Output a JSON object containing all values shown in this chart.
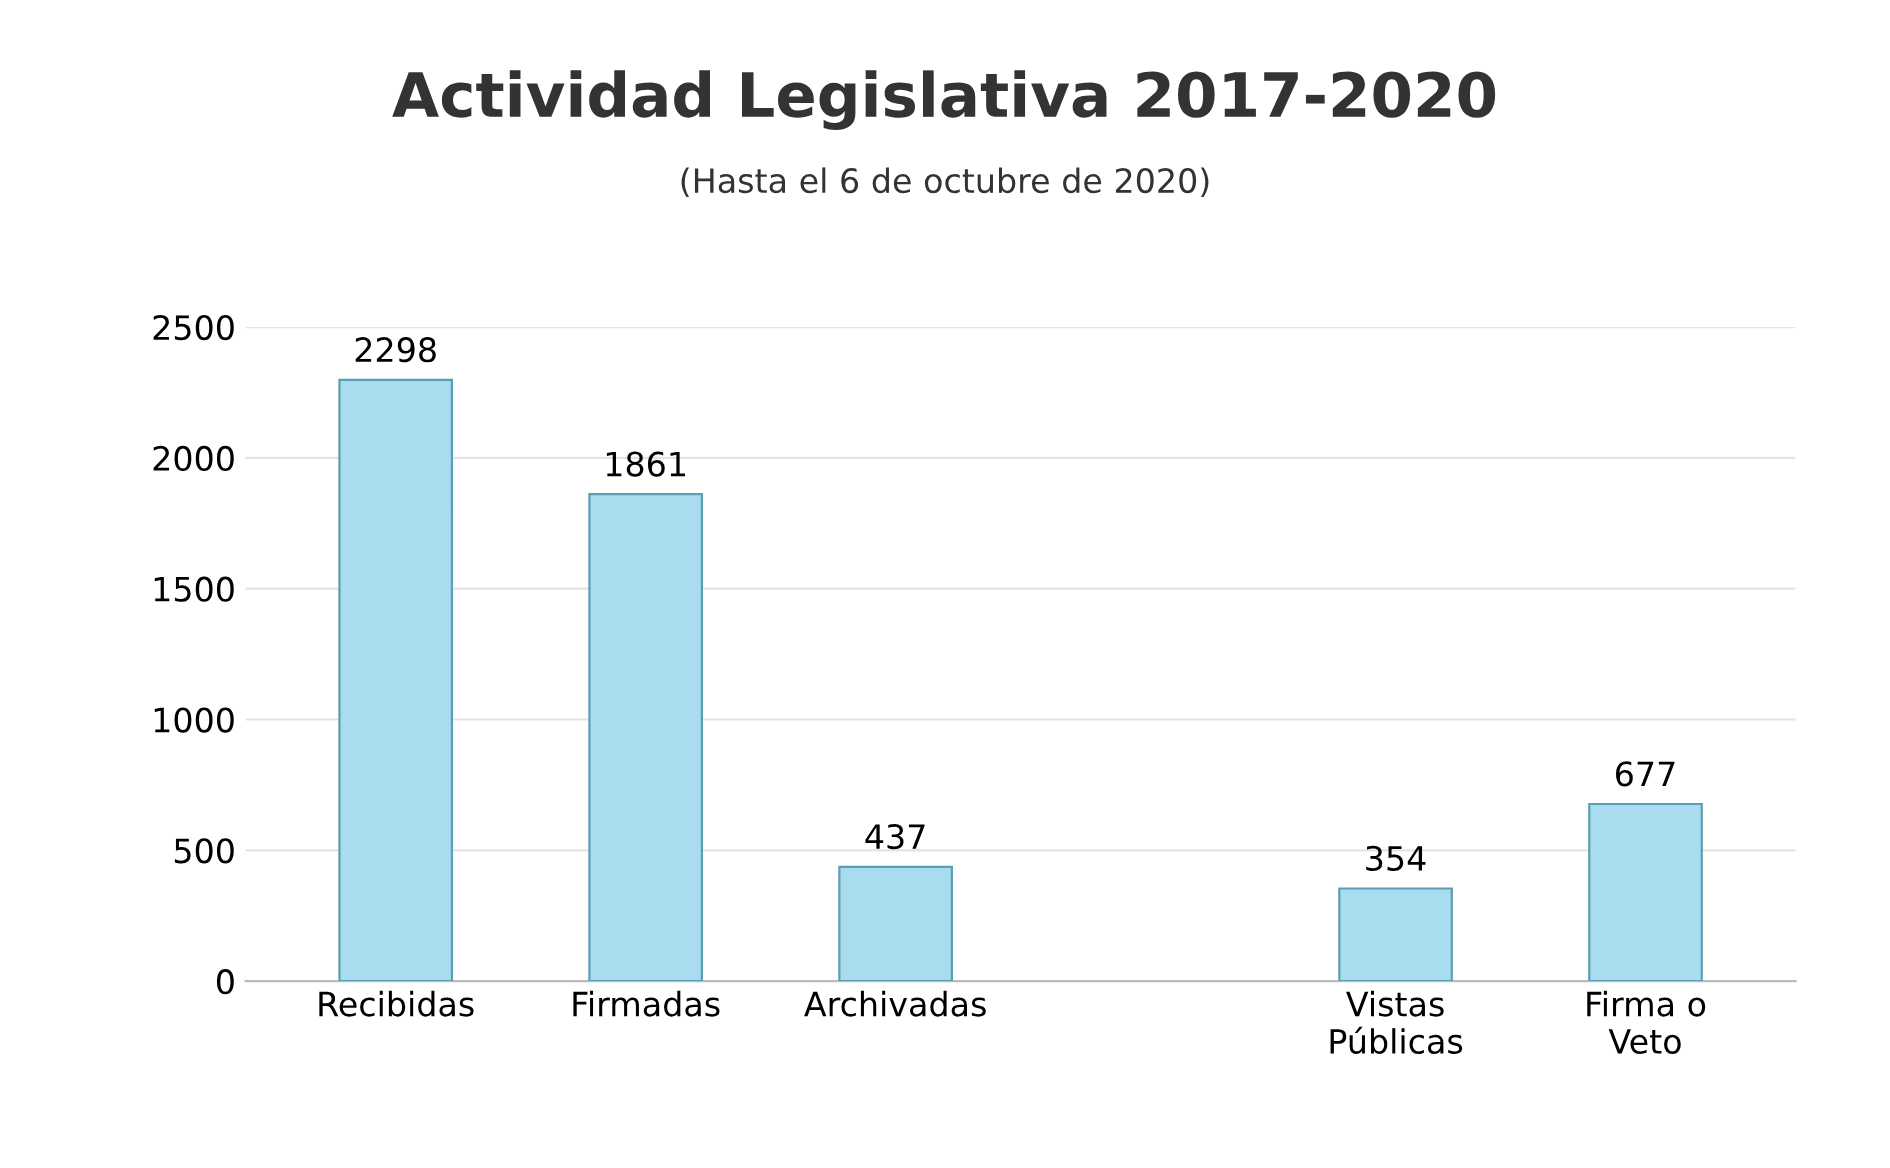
{
  "chart_data": {
    "type": "bar",
    "title": "Actividad Legislativa 2017-2020",
    "subtitle": "(Hasta el 6 de octubre de 2020)",
    "categories": [
      "Recibidas",
      "Firmadas",
      "Archivadas",
      null,
      "Vistas\nPúblicas",
      "Firma o\nVeto"
    ],
    "values": [
      2298,
      1861,
      437,
      null,
      354,
      677
    ],
    "color": "#a8dcee",
    "ylim": [
      0,
      2500
    ],
    "yticks": [
      0,
      500,
      1000,
      1500,
      2000,
      2500
    ],
    "grid": "y",
    "data_labels": true
  }
}
